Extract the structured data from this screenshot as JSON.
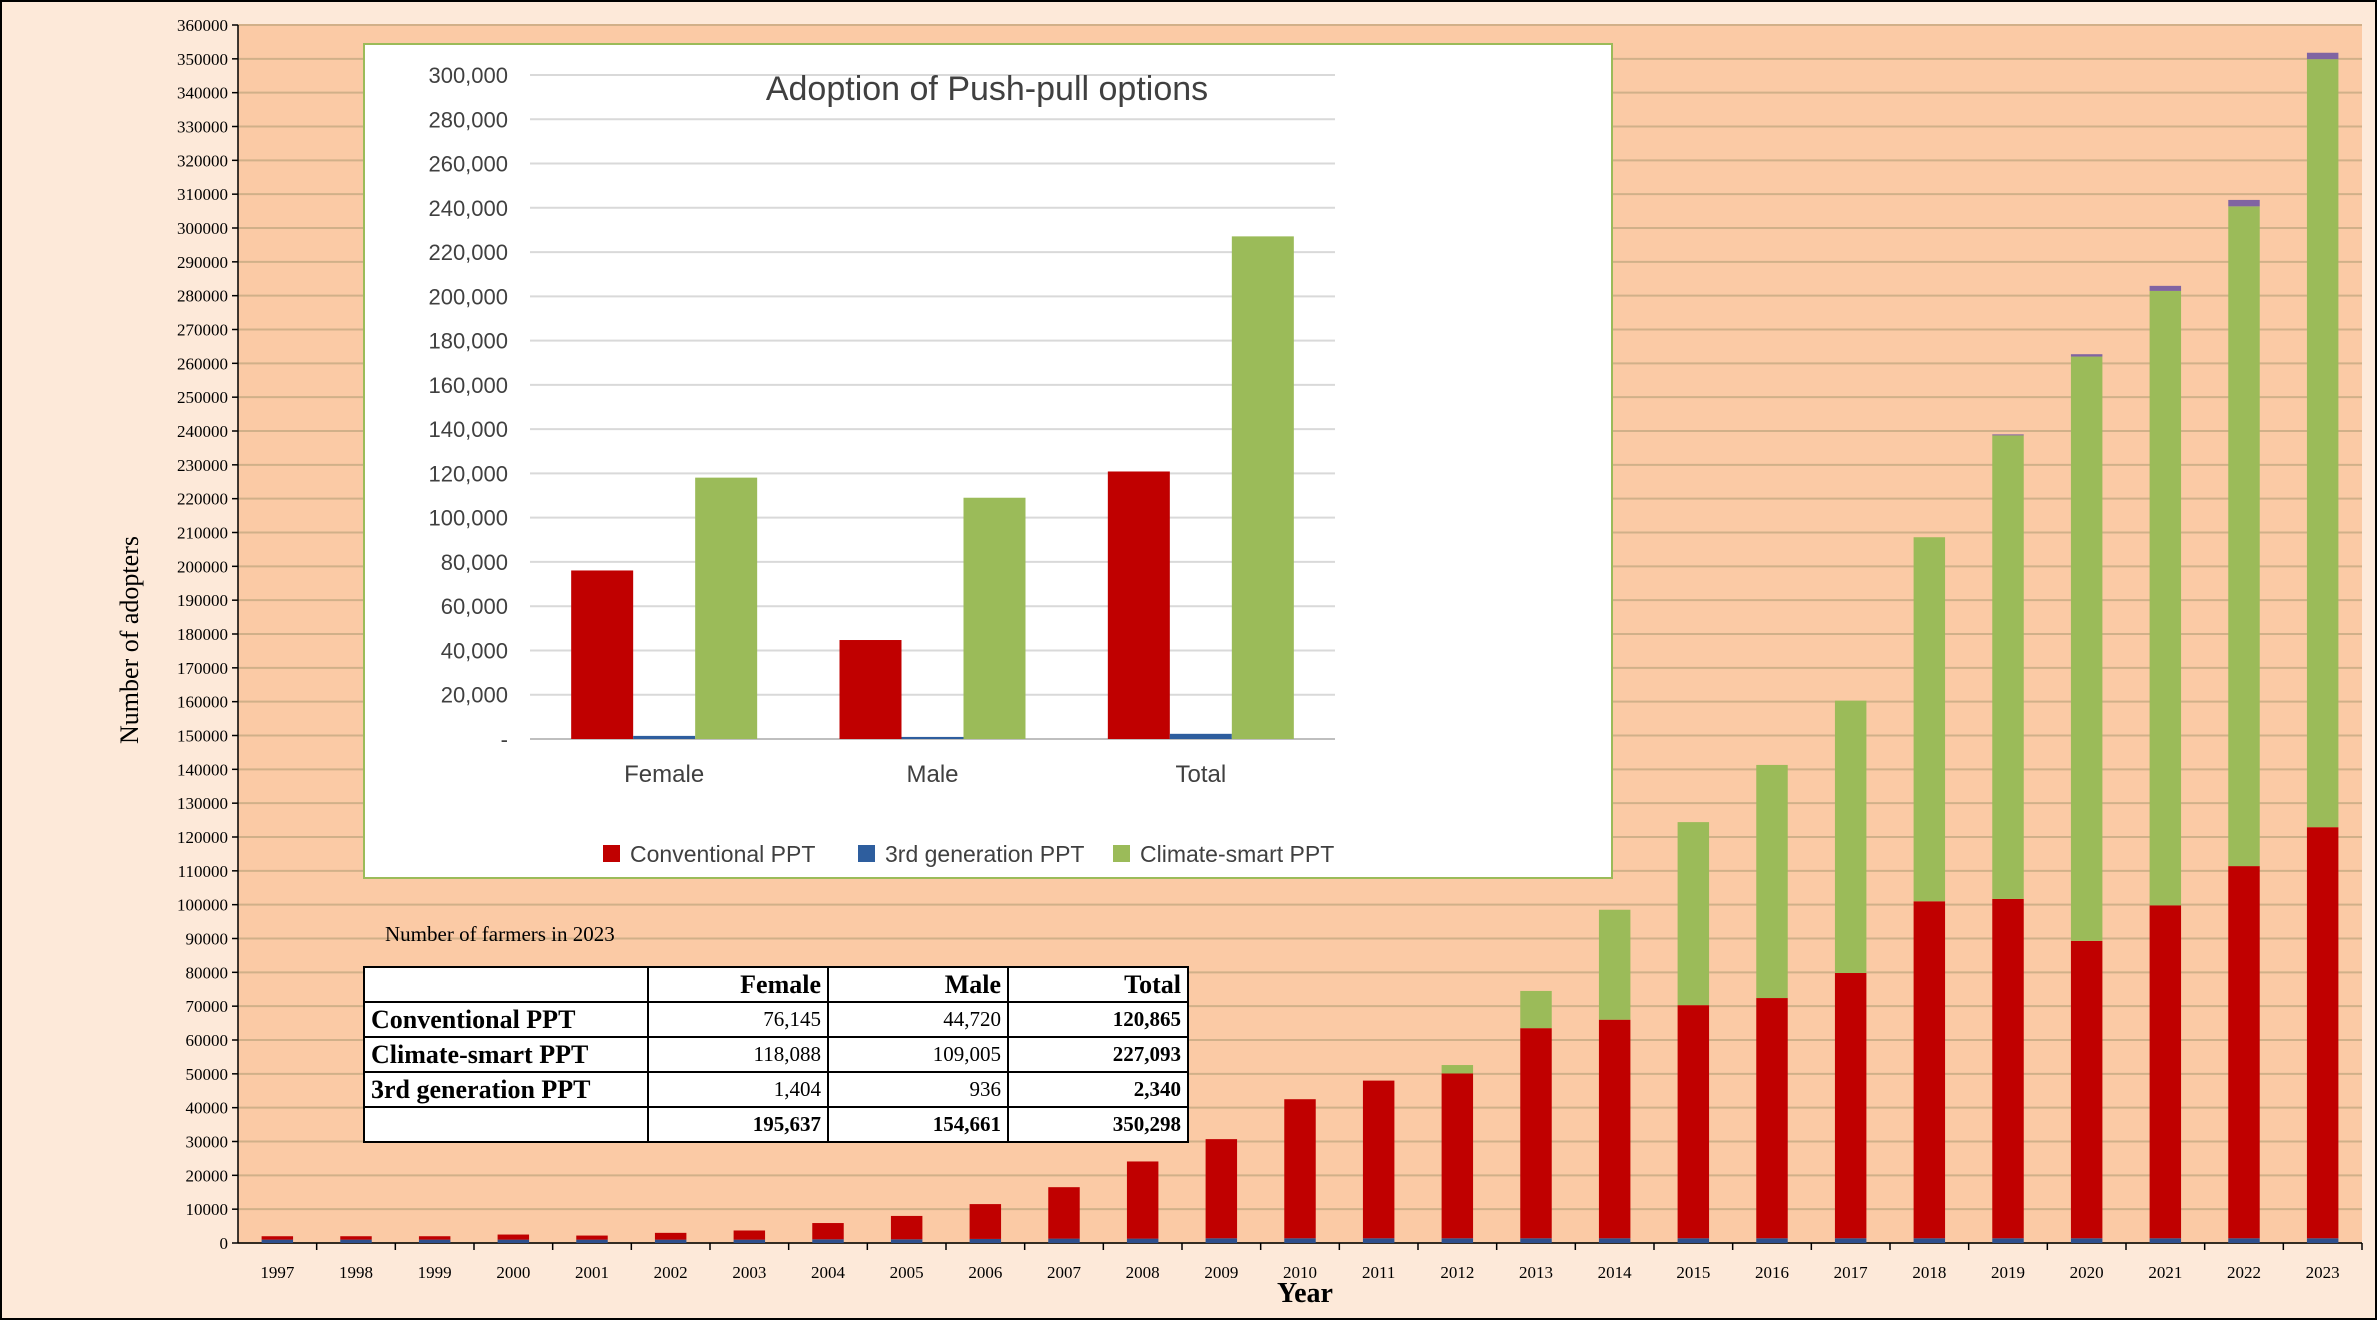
{
  "chart_data": [
    {
      "type": "bar",
      "stacked": true,
      "title": "",
      "xlabel": "Year",
      "ylabel": "Number of adopters",
      "ylim": [
        0,
        360000
      ],
      "ytick_step": 10000,
      "grid": true,
      "categories": [
        "1997",
        "1998",
        "1999",
        "2000",
        "2001",
        "2002",
        "2003",
        "2004",
        "2005",
        "2006",
        "2007",
        "2008",
        "2009",
        "2010",
        "2011",
        "2012",
        "2013",
        "2014",
        "2015",
        "2016",
        "2017",
        "2018",
        "2019",
        "2020",
        "2021",
        "2022",
        "2023"
      ],
      "series": [
        {
          "key": "blue",
          "values": [
            1000,
            1000,
            1000,
            1000,
            1000,
            1000,
            1000,
            1100,
            1100,
            1200,
            1300,
            1300,
            1400,
            1400,
            1400,
            1400,
            1400,
            1400,
            1400,
            1400,
            1400,
            1400,
            1400,
            1400,
            1400,
            1400,
            1400
          ]
        },
        {
          "key": "red",
          "values": [
            1000,
            1000,
            1000,
            1500,
            1200,
            2000,
            2700,
            4800,
            6900,
            10300,
            15200,
            22800,
            29300,
            41100,
            46600,
            48700,
            62100,
            64600,
            68900,
            71000,
            78400,
            99600,
            100300,
            87900,
            98400,
            110000,
            121500
          ]
        },
        {
          "key": "green",
          "values": [
            0,
            0,
            0,
            0,
            0,
            0,
            0,
            0,
            0,
            0,
            0,
            0,
            0,
            0,
            0,
            2500,
            11000,
            32500,
            54100,
            68900,
            80500,
            107600,
            137000,
            172700,
            181600,
            195000,
            227000
          ]
        },
        {
          "key": "purple",
          "values": [
            0,
            0,
            0,
            0,
            0,
            0,
            0,
            0,
            0,
            0,
            0,
            0,
            0,
            0,
            0,
            0,
            0,
            0,
            0,
            0,
            0,
            0,
            300,
            700,
            1500,
            1900,
            1900
          ]
        }
      ],
      "colors": {
        "blue": "#2e4f8c",
        "red": "#c00000",
        "green": "#9bbb59",
        "purple": "#8064a2",
        "background": "#fbcaa5",
        "gridline": "#d1b089"
      }
    },
    {
      "type": "bar",
      "title": "Adoption of Push-pull options",
      "xlabel": "",
      "ylabel": "",
      "ylim": [
        0,
        300000
      ],
      "ytick_step": 20000,
      "categories": [
        "Female",
        "Male",
        "Total"
      ],
      "series": [
        {
          "name": "Conventional PPT",
          "values": [
            76145,
            44720,
            120865
          ],
          "color": "#c00000"
        },
        {
          "name": "3rd generation PPT",
          "values": [
            1404,
            936,
            2340
          ],
          "color": "#2e5e9e"
        },
        {
          "name": "Climate-smart PPT",
          "values": [
            118088,
            109005,
            227093
          ],
          "color": "#9bbb59"
        }
      ],
      "legend": "bottom"
    }
  ],
  "table": {
    "caption": "Number of farmers in 2023",
    "headers": [
      "",
      "Female",
      "Male",
      "Total"
    ],
    "rows": [
      [
        "Conventional PPT",
        "76,145",
        "44,720",
        "120,865"
      ],
      [
        "Climate-smart PPT",
        "118,088",
        "109,005",
        "227,093"
      ],
      [
        "3rd generation PPT",
        "1,404",
        "936",
        "2,340"
      ],
      [
        "",
        "195,637",
        "154,661",
        "350,298"
      ]
    ]
  }
}
